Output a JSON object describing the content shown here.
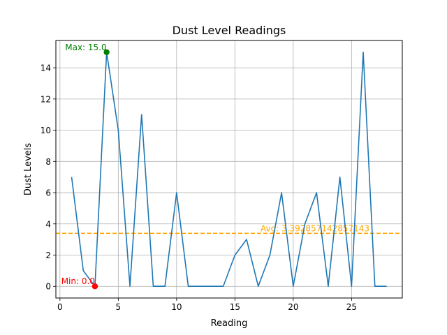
{
  "chart_data": {
    "type": "line",
    "title": "Dust Level Readings",
    "xlabel": "Reading",
    "ylabel": "Dust Levels",
    "xlim": [
      -0.35,
      29.35
    ],
    "ylim": [
      -0.75,
      15.75
    ],
    "xticks": [
      0,
      5,
      10,
      15,
      20,
      25
    ],
    "yticks": [
      0,
      2,
      4,
      6,
      8,
      10,
      12,
      14
    ],
    "grid": true,
    "series": [
      {
        "color": "#1f77b4",
        "x": [
          1,
          2,
          3,
          4,
          5,
          6,
          7,
          8,
          9,
          10,
          11,
          12,
          13,
          14,
          15,
          16,
          17,
          18,
          19,
          20,
          21,
          22,
          23,
          24,
          25,
          26,
          27,
          28
        ],
        "y": [
          7,
          1,
          0,
          15,
          10,
          0,
          11,
          0,
          0,
          6,
          0,
          0,
          0,
          0,
          2,
          3,
          0,
          2,
          6,
          0,
          4,
          6,
          0,
          7,
          0,
          15,
          0,
          0
        ]
      }
    ],
    "average": {
      "value": 3.392857142857143,
      "label": "Avg: 3.392857142857143",
      "color": "#ffa500"
    },
    "max_point": {
      "x": 4,
      "y": 15,
      "label": "Max: 15.0",
      "color": "#008000"
    },
    "min_point": {
      "x": 3,
      "y": 0,
      "label": "Min: 0.0",
      "color": "#ff0000"
    }
  }
}
